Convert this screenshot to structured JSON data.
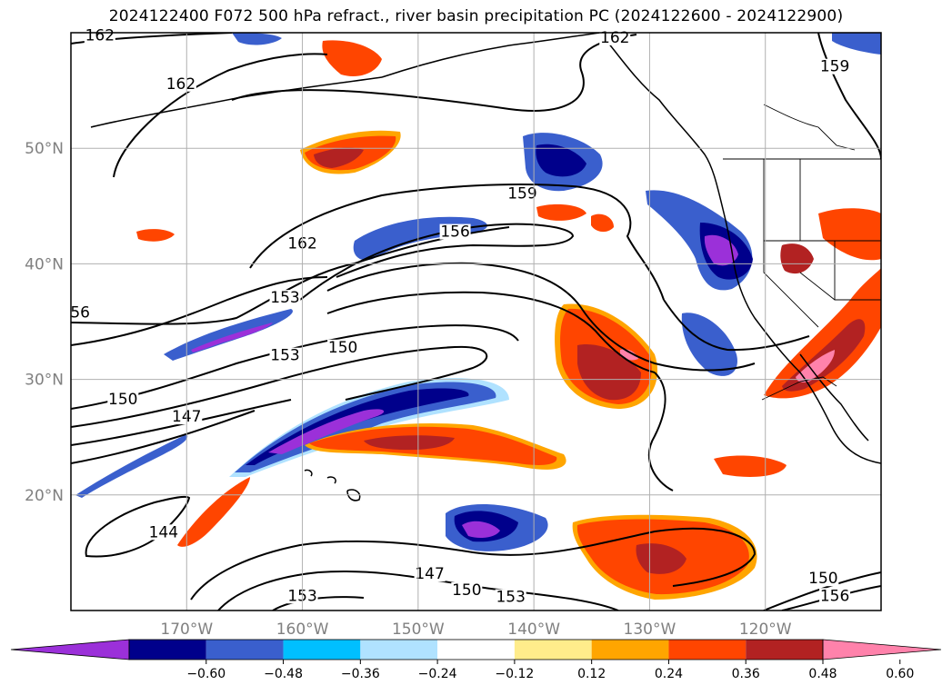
{
  "title": "2024122400 F072 500 hPa refract., river basin precipitation PC (2024122600 - 2024122900)",
  "map": {
    "projection": "cylindrical lon/lat",
    "lon_range": [
      -180,
      -110
    ],
    "lat_range": [
      10,
      60
    ],
    "grid": true,
    "lon_ticks": [
      {
        "lon": -170,
        "label": "170°W"
      },
      {
        "lon": -160,
        "label": "160°W"
      },
      {
        "lon": -150,
        "label": "150°W"
      },
      {
        "lon": -140,
        "label": "140°W"
      },
      {
        "lon": -130,
        "label": "130°W"
      },
      {
        "lon": -120,
        "label": "120°W"
      }
    ],
    "lat_ticks": [
      {
        "lat": 50,
        "label": "50°N"
      },
      {
        "lat": 40,
        "label": "40°N"
      },
      {
        "lat": 30,
        "label": "30°N"
      },
      {
        "lat": 20,
        "label": "20°N"
      }
    ]
  },
  "contours": {
    "field": "500 hPa refractivity",
    "levels": [
      144,
      147,
      150,
      153,
      156,
      159,
      162
    ],
    "line_color": "#000000",
    "labels": [
      {
        "text": "162",
        "lon": -177.5,
        "lat": 59.5
      },
      {
        "text": "162",
        "lon": -170.5,
        "lat": 55.3
      },
      {
        "text": "162",
        "lon": -133.0,
        "lat": 59.3
      },
      {
        "text": "159",
        "lon": -114.0,
        "lat": 56.8
      },
      {
        "text": "162",
        "lon": -160.0,
        "lat": 41.5
      },
      {
        "text": "159",
        "lon": -141.0,
        "lat": 45.8
      },
      {
        "text": "156",
        "lon": -146.8,
        "lat": 42.5
      },
      {
        "text": "56",
        "lon": -179.2,
        "lat": 35.5
      },
      {
        "text": "153",
        "lon": -161.5,
        "lat": 36.8
      },
      {
        "text": "150",
        "lon": -156.5,
        "lat": 32.5
      },
      {
        "text": "153",
        "lon": -161.5,
        "lat": 31.8
      },
      {
        "text": "150",
        "lon": -175.5,
        "lat": 28.0
      },
      {
        "text": "147",
        "lon": -170.0,
        "lat": 26.5
      },
      {
        "text": "144",
        "lon": -172.0,
        "lat": 16.5
      },
      {
        "text": "153",
        "lon": -160.0,
        "lat": 11.0
      },
      {
        "text": "147",
        "lon": -149.0,
        "lat": 12.9
      },
      {
        "text": "150",
        "lon": -145.8,
        "lat": 11.5
      },
      {
        "text": "153",
        "lon": -142.0,
        "lat": 10.9
      },
      {
        "text": "150",
        "lon": -115.0,
        "lat": 12.5
      },
      {
        "text": "156",
        "lon": -114.0,
        "lat": 11.0
      }
    ]
  },
  "colorbar": {
    "label_values": [
      "−0.60",
      "−0.48",
      "−0.36",
      "−0.24",
      "−0.12",
      "0.12",
      "0.24",
      "0.36",
      "0.48",
      "0.60"
    ],
    "bins": [
      {
        "range": "< -0.60",
        "color": "#9b30d9"
      },
      {
        "range": "-0.60 – -0.48",
        "color": "#00008b"
      },
      {
        "range": "-0.48 – -0.36",
        "color": "#3a5fcd"
      },
      {
        "range": "-0.36 – -0.24",
        "color": "#00bfff"
      },
      {
        "range": "-0.24 – -0.12",
        "color": "#b0e2ff"
      },
      {
        "range": "-0.12 – 0.12",
        "color": "#ffffff"
      },
      {
        "range": "0.12 – 0.24",
        "color": "#ffec8b"
      },
      {
        "range": "0.24 – 0.36",
        "color": "#ffa500"
      },
      {
        "range": "0.36 – 0.48",
        "color": "#ff4500"
      },
      {
        "range": "0.48 – 0.60",
        "color": "#b22222"
      },
      {
        "range": "> 0.60",
        "color": "#ff82ab"
      }
    ]
  }
}
